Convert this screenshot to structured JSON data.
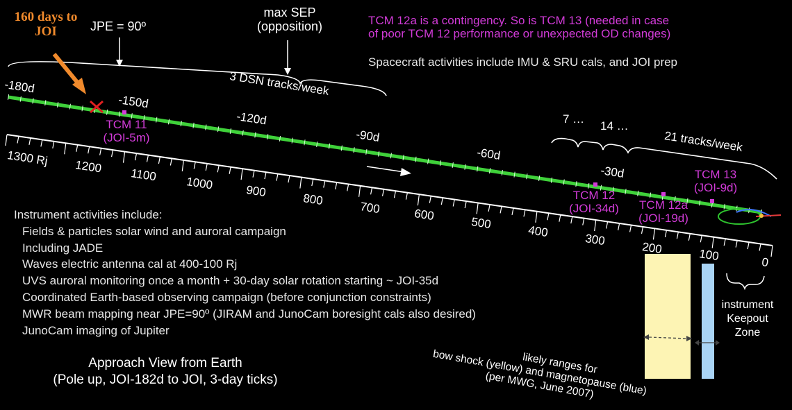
{
  "callout": {
    "text": "160 days to JOI",
    "color": "#f08a2c"
  },
  "jpe_label": "JPE = 90º",
  "max_sep": {
    "line1": "max SEP",
    "line2": "(opposition)"
  },
  "dsn3": "3 DSN tracks/week",
  "tcm_notes": {
    "line1": "TCM 12a is a contingency.  So is TCM 13 (needed in case",
    "line2": "of poor TCM 12 performance or unexpected OD changes)",
    "color": "#d23bd8"
  },
  "spacecraft_activities": "Spacecraft activities include IMU & SRU cals, and JOI prep",
  "day_labels": [
    "-180d",
    "-150d",
    "-120d",
    "-90d",
    "-60d",
    "-30d"
  ],
  "tracks": {
    "seven": "7 …",
    "fourteen": "14 …",
    "twentyone": "21 tracks/week"
  },
  "tcms": [
    {
      "name": "TCM 11",
      "when": "(JOI-5m)"
    },
    {
      "name": "TCM 12",
      "when": "(JOI-34d)"
    },
    {
      "name": "TCM 12a",
      "when": "(JOI-19d)"
    },
    {
      "name": "TCM 13",
      "when": "(JOI-9d)"
    }
  ],
  "rj_labels": [
    "1300 Rj",
    "1200",
    "1100",
    "1000",
    "900",
    "800",
    "700",
    "600",
    "500",
    "400",
    "300",
    "200",
    "100",
    "0"
  ],
  "instrument_activities": {
    "heading": "Instrument activities include:",
    "items": [
      "Fields & particles solar wind and auroral campaign",
      "Including JADE",
      "Waves electric antenna cal at 400-100 Rj",
      "UVS auroral monitoring once a month + 30-day solar rotation starting ~ JOI-35d",
      "Coordinated Earth-based observing campaign (before conjunction constraints)",
      "MWR beam mapping near JPE=90º (JIRAM and JunoCam boresight cals also desired)",
      "JunoCam imaging of Jupiter"
    ]
  },
  "approach": {
    "line1": "Approach View from Earth",
    "line2": "(Pole up, JOI-182d to JOI, 3-day ticks)"
  },
  "keepout": {
    "line1": "instrument",
    "line2": "Keepout",
    "line3": "Zone"
  },
  "ranges_note": {
    "line1": "likely ranges for",
    "line2": "bow shock (yellow) and magnetopause (blue)",
    "line3": "(per MWG, June 2007)"
  },
  "colors": {
    "trajectory": "#3fd13a",
    "tcm_marker": "#d23bd8",
    "bow_shock": "#fdf4b4",
    "magnetopause": "#a9d4f5"
  }
}
